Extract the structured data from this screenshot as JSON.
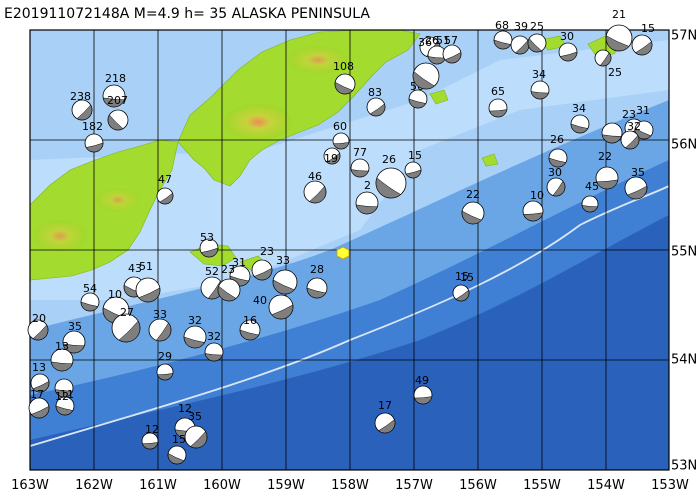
{
  "title": "E201911072148A  M=4.9  h= 35  ALASKA PENINSULA",
  "lon_labels": [
    "163W",
    "162W",
    "161W",
    "160W",
    "159W",
    "158W",
    "157W",
    "156W",
    "155W",
    "154W",
    "153W"
  ],
  "lat_labels": [
    "57N",
    "56N",
    "55N",
    "54N",
    "53N"
  ],
  "event_depths": [
    "218",
    "238",
    "207",
    "182",
    "108",
    "83",
    "60",
    "56",
    "36",
    "26",
    "51",
    "57",
    "68",
    "39",
    "25",
    "30",
    "21",
    "15",
    "34",
    "25",
    "65",
    "34",
    "23",
    "31",
    "32",
    "22",
    "77",
    "26",
    "15",
    "19",
    "26",
    "30",
    "10",
    "45",
    "35",
    "22",
    "46",
    "2",
    "15",
    "47",
    "28",
    "23",
    "33",
    "53",
    "31",
    "52",
    "32",
    "12",
    "15",
    "43",
    "51",
    "54",
    "35",
    "20",
    "29",
    "10",
    "13",
    "11",
    "27",
    "23",
    "40",
    "16",
    "13",
    "17",
    "32",
    "33",
    "49",
    "12",
    "35",
    "15",
    "17",
    "12"
  ]
}
